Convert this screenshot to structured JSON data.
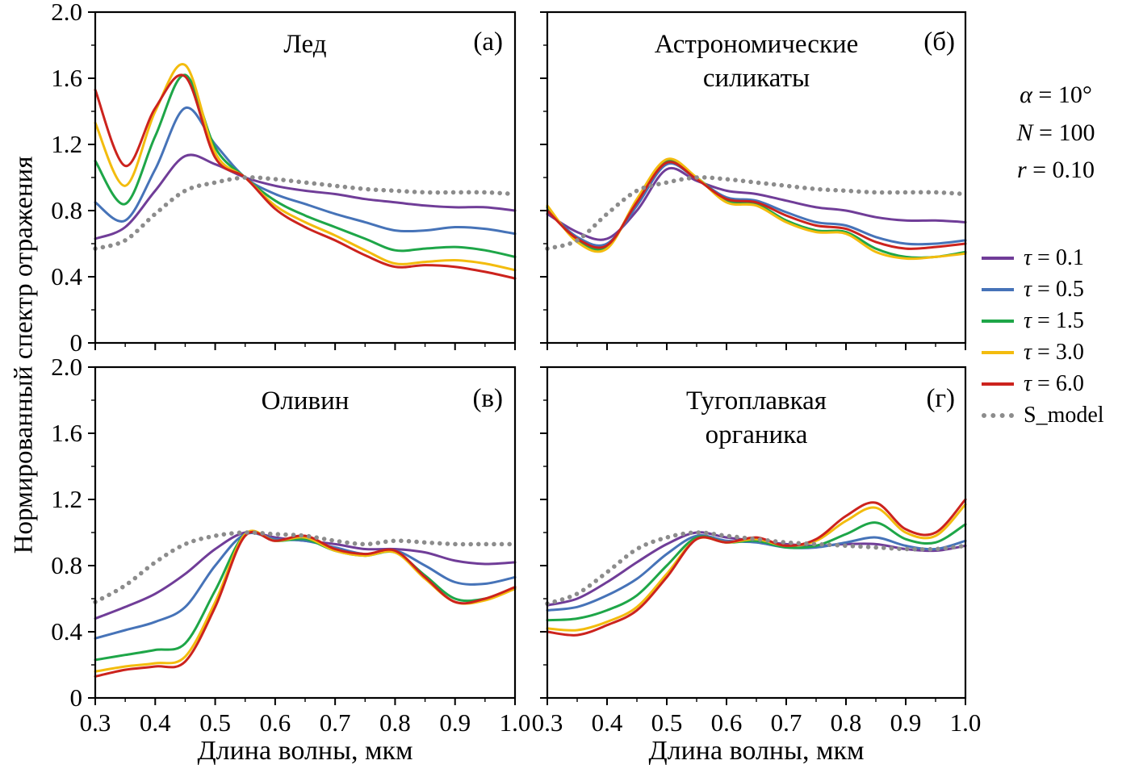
{
  "colors": {
    "tau_0_1": "#703d98",
    "tau_0_5": "#4673b8",
    "tau_1_5": "#1ea648",
    "tau_3_0": "#f3bc0e",
    "tau_6_0": "#cc231d",
    "s_model": "#8c8c8c"
  },
  "axes": {
    "xlim": [
      0.3,
      1.0
    ],
    "ylim": [
      0,
      2.0
    ],
    "xticks": [
      0.3,
      0.4,
      0.5,
      0.6,
      0.7,
      0.8,
      0.9,
      1.0
    ],
    "xtick_labels": [
      "0.3",
      "0.4",
      "0.5",
      "0.6",
      "0.7",
      "0.8",
      "0.9",
      "1.0"
    ],
    "yticks": [
      0,
      0.4,
      0.8,
      1.2,
      1.6,
      2.0
    ],
    "ytick_labels": [
      "0",
      "0.4",
      "0.8",
      "1.2",
      "1.6",
      "2.0"
    ],
    "xlabel": "Длина волны, мкм",
    "ylabel": "Нормированный спектр отражения",
    "grid": false
  },
  "params": [
    {
      "sym": "α",
      "rest": " = 10°"
    },
    {
      "sym": "N",
      "rest": " = 100"
    },
    {
      "sym": "r",
      "rest": " = 0.10"
    }
  ],
  "legend": {
    "position": "right",
    "items": [
      {
        "sym": "τ",
        "rest": " = 0.1",
        "color": "tau_0_1",
        "style": "solid"
      },
      {
        "sym": "τ",
        "rest": " = 0.5",
        "color": "tau_0_5",
        "style": "solid"
      },
      {
        "sym": "τ",
        "rest": " = 1.5",
        "color": "tau_1_5",
        "style": "solid"
      },
      {
        "sym": "τ",
        "rest": " = 3.0",
        "color": "tau_3_0",
        "style": "solid"
      },
      {
        "sym": "τ",
        "rest": " = 6.0",
        "color": "tau_6_0",
        "style": "solid"
      },
      {
        "sym": "",
        "rest": "S_model",
        "color": "s_model",
        "style": "dotted"
      }
    ]
  },
  "chart_data": [
    {
      "type": "line",
      "panel_label": "(а)",
      "title": "Лед",
      "x": [
        0.3,
        0.35,
        0.4,
        0.45,
        0.5,
        0.55,
        0.6,
        0.65,
        0.7,
        0.75,
        0.8,
        0.85,
        0.9,
        0.95,
        1.0
      ],
      "series": [
        {
          "name": "τ = 0.1",
          "color": "tau_0_1",
          "style": "solid",
          "values": [
            0.63,
            0.7,
            0.92,
            1.13,
            1.08,
            1.0,
            0.95,
            0.92,
            0.9,
            0.87,
            0.85,
            0.83,
            0.82,
            0.82,
            0.8
          ]
        },
        {
          "name": "τ = 0.5",
          "color": "tau_0_5",
          "style": "solid",
          "values": [
            0.85,
            0.74,
            1.05,
            1.42,
            1.2,
            1.0,
            0.9,
            0.84,
            0.78,
            0.73,
            0.68,
            0.68,
            0.7,
            0.69,
            0.66
          ]
        },
        {
          "name": "τ = 1.5",
          "color": "tau_1_5",
          "style": "solid",
          "values": [
            1.1,
            0.84,
            1.25,
            1.62,
            1.18,
            1.0,
            0.86,
            0.77,
            0.7,
            0.63,
            0.56,
            0.57,
            0.58,
            0.56,
            0.52
          ]
        },
        {
          "name": "τ = 3.0",
          "color": "tau_3_0",
          "style": "solid",
          "values": [
            1.33,
            0.95,
            1.4,
            1.68,
            1.15,
            1.0,
            0.83,
            0.73,
            0.65,
            0.56,
            0.48,
            0.49,
            0.5,
            0.48,
            0.44
          ]
        },
        {
          "name": "τ = 6.0",
          "color": "tau_6_0",
          "style": "solid",
          "values": [
            1.53,
            1.07,
            1.42,
            1.61,
            1.12,
            1.0,
            0.81,
            0.7,
            0.62,
            0.53,
            0.46,
            0.47,
            0.46,
            0.43,
            0.39
          ]
        },
        {
          "name": "S_model",
          "color": "s_model",
          "style": "dotted",
          "values": [
            0.57,
            0.62,
            0.78,
            0.92,
            0.97,
            1.0,
            0.99,
            0.97,
            0.95,
            0.93,
            0.92,
            0.91,
            0.91,
            0.91,
            0.9
          ]
        }
      ]
    },
    {
      "type": "line",
      "panel_label": "(б)",
      "title": "Астрономические\nсиликаты",
      "x": [
        0.3,
        0.35,
        0.4,
        0.45,
        0.5,
        0.55,
        0.6,
        0.65,
        0.7,
        0.75,
        0.8,
        0.85,
        0.9,
        0.95,
        1.0
      ],
      "series": [
        {
          "name": "τ = 0.1",
          "color": "tau_0_1",
          "style": "solid",
          "values": [
            0.78,
            0.67,
            0.63,
            0.8,
            1.05,
            0.98,
            0.92,
            0.9,
            0.86,
            0.82,
            0.8,
            0.76,
            0.74,
            0.74,
            0.73
          ]
        },
        {
          "name": "τ = 0.5",
          "color": "tau_0_5",
          "style": "solid",
          "values": [
            0.8,
            0.64,
            0.6,
            0.83,
            1.08,
            0.99,
            0.88,
            0.86,
            0.79,
            0.73,
            0.71,
            0.64,
            0.6,
            0.6,
            0.62
          ]
        },
        {
          "name": "τ = 1.5",
          "color": "tau_1_5",
          "style": "solid",
          "values": [
            0.82,
            0.62,
            0.58,
            0.86,
            1.1,
            1.0,
            0.86,
            0.84,
            0.74,
            0.68,
            0.67,
            0.57,
            0.52,
            0.52,
            0.55
          ]
        },
        {
          "name": "τ = 3.0",
          "color": "tau_3_0",
          "style": "solid",
          "values": [
            0.83,
            0.61,
            0.57,
            0.87,
            1.11,
            1.0,
            0.85,
            0.83,
            0.73,
            0.67,
            0.66,
            0.55,
            0.51,
            0.52,
            0.54
          ]
        },
        {
          "name": "τ = 6.0",
          "color": "tau_6_0",
          "style": "solid",
          "values": [
            0.8,
            0.63,
            0.59,
            0.85,
            1.09,
            0.99,
            0.87,
            0.85,
            0.77,
            0.71,
            0.69,
            0.61,
            0.57,
            0.58,
            0.6
          ]
        },
        {
          "name": "S_model",
          "color": "s_model",
          "style": "dotted",
          "values": [
            0.57,
            0.62,
            0.78,
            0.92,
            0.97,
            1.0,
            0.99,
            0.97,
            0.95,
            0.93,
            0.92,
            0.91,
            0.91,
            0.91,
            0.9
          ]
        }
      ]
    },
    {
      "type": "line",
      "panel_label": "(в)",
      "title": "Оливин",
      "x": [
        0.3,
        0.35,
        0.4,
        0.45,
        0.5,
        0.55,
        0.6,
        0.65,
        0.7,
        0.75,
        0.8,
        0.85,
        0.9,
        0.95,
        1.0
      ],
      "series": [
        {
          "name": "τ = 0.1",
          "color": "tau_0_1",
          "style": "solid",
          "values": [
            0.48,
            0.55,
            0.63,
            0.75,
            0.9,
            1.0,
            0.97,
            0.95,
            0.93,
            0.9,
            0.9,
            0.88,
            0.83,
            0.81,
            0.82
          ]
        },
        {
          "name": "τ = 0.5",
          "color": "tau_0_5",
          "style": "solid",
          "values": [
            0.36,
            0.41,
            0.46,
            0.55,
            0.8,
            0.99,
            0.96,
            0.95,
            0.91,
            0.87,
            0.89,
            0.8,
            0.7,
            0.69,
            0.73
          ]
        },
        {
          "name": "τ = 1.5",
          "color": "tau_1_5",
          "style": "solid",
          "values": [
            0.23,
            0.26,
            0.29,
            0.33,
            0.65,
            0.99,
            0.95,
            0.96,
            0.89,
            0.86,
            0.88,
            0.74,
            0.6,
            0.6,
            0.66
          ]
        },
        {
          "name": "τ = 3.0",
          "color": "tau_3_0",
          "style": "solid",
          "values": [
            0.16,
            0.19,
            0.21,
            0.25,
            0.58,
            0.99,
            0.95,
            0.97,
            0.89,
            0.86,
            0.88,
            0.72,
            0.58,
            0.59,
            0.66
          ]
        },
        {
          "name": "τ = 6.0",
          "color": "tau_6_0",
          "style": "solid",
          "values": [
            0.13,
            0.17,
            0.19,
            0.22,
            0.55,
            0.98,
            0.95,
            0.98,
            0.9,
            0.87,
            0.89,
            0.73,
            0.58,
            0.6,
            0.67
          ]
        },
        {
          "name": "S_model",
          "color": "s_model",
          "style": "dotted",
          "values": [
            0.58,
            0.68,
            0.82,
            0.93,
            0.98,
            1.0,
            0.99,
            0.98,
            0.95,
            0.93,
            0.95,
            0.94,
            0.93,
            0.93,
            0.93
          ]
        }
      ]
    },
    {
      "type": "line",
      "panel_label": "(г)",
      "title": "Тугоплавкая\nорганика",
      "x": [
        0.3,
        0.35,
        0.4,
        0.45,
        0.5,
        0.55,
        0.6,
        0.65,
        0.7,
        0.75,
        0.8,
        0.85,
        0.9,
        0.95,
        1.0
      ],
      "series": [
        {
          "name": "τ = 0.1",
          "color": "tau_0_1",
          "style": "solid",
          "values": [
            0.56,
            0.6,
            0.7,
            0.82,
            0.93,
            1.0,
            0.97,
            0.95,
            0.93,
            0.92,
            0.93,
            0.93,
            0.9,
            0.89,
            0.92
          ]
        },
        {
          "name": "τ = 0.5",
          "color": "tau_0_5",
          "style": "solid",
          "values": [
            0.53,
            0.55,
            0.62,
            0.72,
            0.87,
            0.98,
            0.95,
            0.94,
            0.91,
            0.91,
            0.94,
            0.97,
            0.92,
            0.9,
            0.95
          ]
        },
        {
          "name": "τ = 1.5",
          "color": "tau_1_5",
          "style": "solid",
          "values": [
            0.47,
            0.48,
            0.53,
            0.62,
            0.8,
            0.97,
            0.94,
            0.95,
            0.91,
            0.92,
            0.99,
            1.06,
            0.96,
            0.94,
            1.05
          ]
        },
        {
          "name": "τ = 3.0",
          "color": "tau_3_0",
          "style": "solid",
          "values": [
            0.42,
            0.41,
            0.46,
            0.55,
            0.75,
            0.96,
            0.94,
            0.96,
            0.92,
            0.95,
            1.07,
            1.15,
            1.0,
            0.98,
            1.17
          ]
        },
        {
          "name": "τ = 6.0",
          "color": "tau_6_0",
          "style": "solid",
          "values": [
            0.4,
            0.38,
            0.44,
            0.53,
            0.73,
            0.96,
            0.94,
            0.97,
            0.92,
            0.96,
            1.1,
            1.18,
            1.02,
            1.0,
            1.2
          ]
        },
        {
          "name": "S_model",
          "color": "s_model",
          "style": "dotted",
          "values": [
            0.57,
            0.63,
            0.76,
            0.9,
            0.97,
            1.0,
            0.98,
            0.96,
            0.94,
            0.93,
            0.92,
            0.91,
            0.9,
            0.9,
            0.92
          ]
        }
      ]
    }
  ]
}
